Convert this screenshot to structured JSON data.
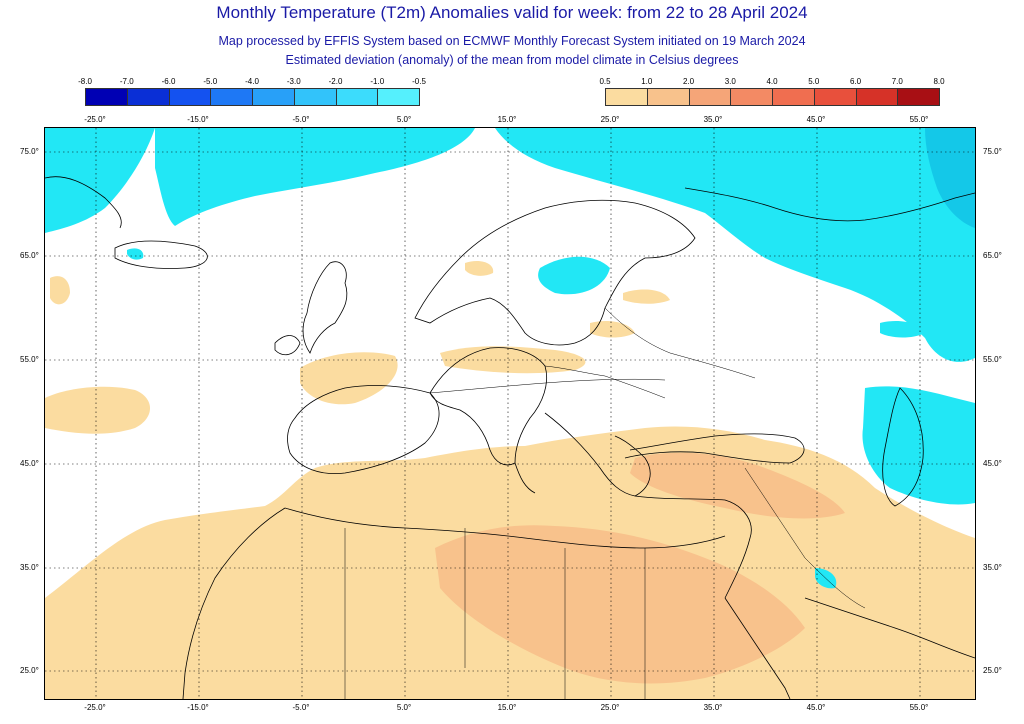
{
  "header": {
    "title": "Monthly Temperature (T2m) Anomalies valid for week: from 22 to 28 April 2024",
    "subtitle1": "Map processed by EFFIS System based on ECMWF Monthly Forecast System initiated on 19 March 2024",
    "subtitle2": "Estimated deviation (anomaly) of the mean from model climate in Celsius degrees"
  },
  "legend": {
    "cold": {
      "labels": [
        "-8.0",
        "-7.0",
        "-6.0",
        "-5.0",
        "-4.0",
        "-3.0",
        "-2.0",
        "-1.0",
        "-0.5"
      ],
      "colors": [
        "#0000b4",
        "#0a2fd6",
        "#1452f0",
        "#1e78f5",
        "#28a0f8",
        "#32c3fa",
        "#3cdcfc",
        "#55f0fd"
      ]
    },
    "warm": {
      "labels": [
        "0.5",
        "1.0",
        "2.0",
        "3.0",
        "4.0",
        "5.0",
        "6.0",
        "7.0",
        "8.0"
      ],
      "colors": [
        "#fbdca0",
        "#f8c28c",
        "#f5a578",
        "#f38a64",
        "#f06e50",
        "#e8503c",
        "#d63228",
        "#a80f14"
      ]
    }
  },
  "axes": {
    "lon_top": [
      "-25.0°",
      "-15.0°",
      "-5.0°",
      "5.0°",
      "15.0°",
      "25.0°",
      "35.0°",
      "45.0°",
      "55.0°"
    ],
    "lon_bottom": [
      "-25.0°",
      "-15.0°",
      "-5.0°",
      "5.0°",
      "15.0°",
      "25.0°",
      "35.0°",
      "45.0°",
      "55.0°"
    ],
    "lat_left": [
      "75.0°",
      "65.0°",
      "55.0°",
      "45.0°",
      "35.0°",
      "25.0°"
    ],
    "lat_right": [
      "75.0°",
      "65.0°",
      "55.0°",
      "45.0°",
      "35.0°",
      "25.0°"
    ]
  },
  "map": {
    "ocean_color": "#ffffff",
    "land_outline_color": "#000000",
    "cold_fill": "#22e7f5",
    "cold_dark_fill": "#14c8e8",
    "warm_fill": "#fbdca0",
    "warm2_fill": "#f8c28c"
  }
}
